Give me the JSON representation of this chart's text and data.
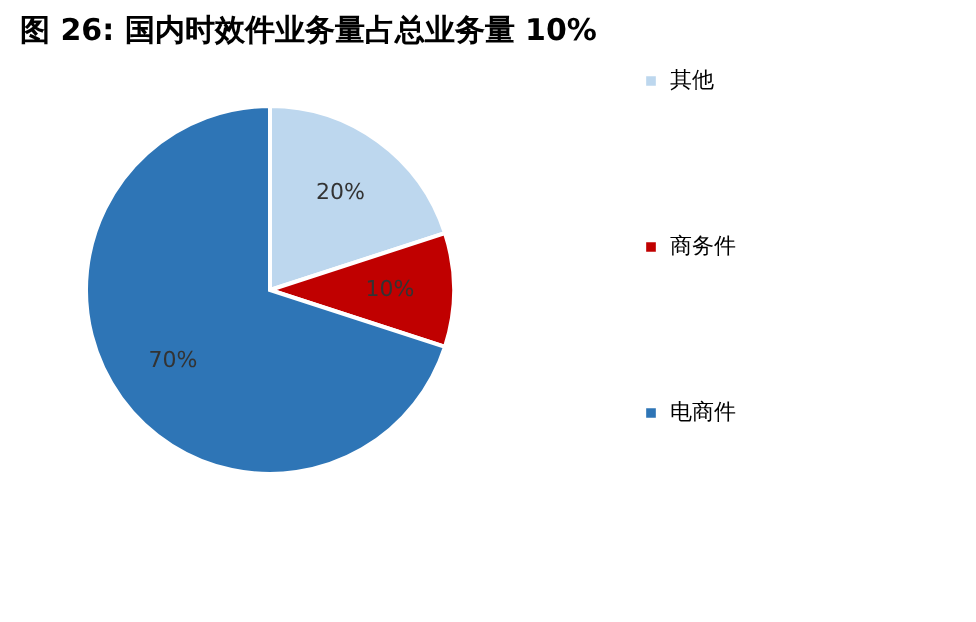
{
  "chart_data": {
    "type": "pie",
    "title": "图  26:  国内时效件业务量占总业务量 10%",
    "categories": [
      "其他",
      "商务件",
      "电商件"
    ],
    "values": [
      20,
      10,
      70
    ],
    "colors": [
      "#bdd7ee",
      "#c00000",
      "#2e75b6"
    ],
    "value_labels": [
      "20%",
      "10%",
      "70%"
    ],
    "legend": "right"
  }
}
